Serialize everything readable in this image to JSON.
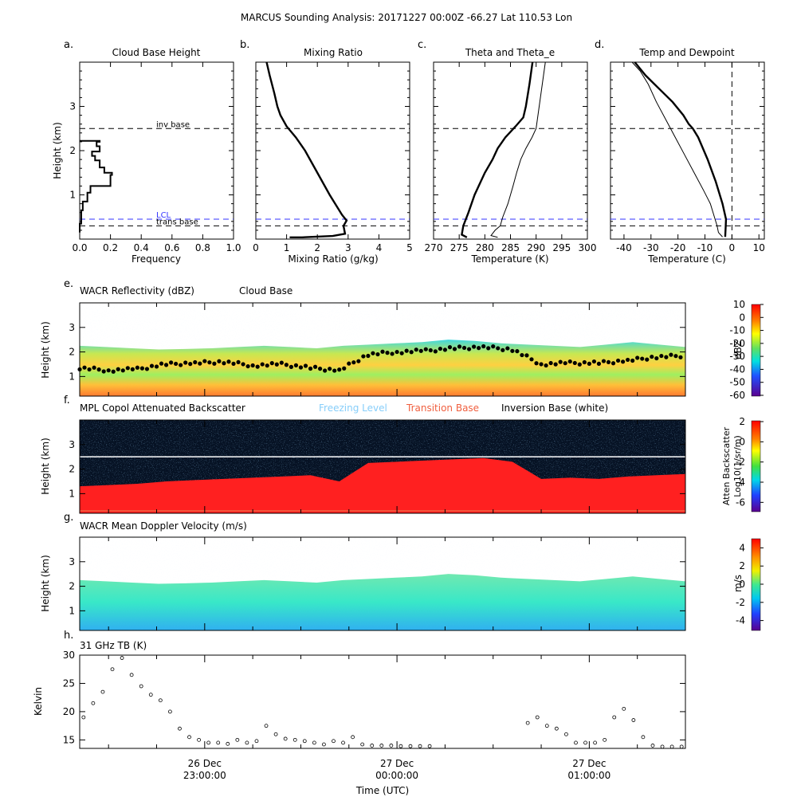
{
  "figure_title": "MARCUS Sounding Analysis: 20171227 00:00Z   -66.27 Lat  110.53 Lon",
  "colors": {
    "lcl_line": "#3333ff",
    "freezing_label": "#87cefa",
    "transition_label": "#f06040",
    "wacr_fill": "#ffb030",
    "mpl_fill": "#ff2020",
    "mpl_background": "#061224",
    "doppler_fill": "#40e8c0"
  },
  "chart_data": [
    {
      "id": "a",
      "panel_letter": "a.",
      "type": "line",
      "title": "Cloud Base Height",
      "xlabel": "Frequency",
      "ylabel": "Height (km)",
      "xlim": [
        0,
        1.0
      ],
      "ylim": [
        0,
        4
      ],
      "xticks": [
        "0.0",
        "0.2",
        "0.4",
        "0.6",
        "0.8",
        "1.0"
      ],
      "yticks": [
        "1",
        "2",
        "3"
      ],
      "series": [
        {
          "step_histogram": true,
          "x": [
            0,
            0.01,
            0.02,
            0.05,
            0.07,
            0.2,
            0.21,
            0.16,
            0.13,
            0.1,
            0.08,
            0.13,
            0.11,
            0.13,
            0.13,
            0.09,
            0.02,
            0.0
          ],
          "y": [
            0.15,
            0.35,
            0.65,
            0.85,
            1.05,
            1.2,
            1.45,
            1.5,
            1.62,
            1.78,
            1.88,
            1.98,
            2.1,
            2.2,
            2.22,
            2.22,
            2.22,
            2.22
          ]
        }
      ],
      "ref_lines": [
        {
          "y": 2.5,
          "label": "inv base",
          "color": "#000000"
        },
        {
          "y": 0.45,
          "label": "LCL",
          "color": "#3333ff"
        },
        {
          "y": 0.3,
          "label": "trans base",
          "color": "#000000"
        }
      ]
    },
    {
      "id": "b",
      "panel_letter": "b.",
      "type": "line",
      "title": "Mixing Ratio",
      "xlabel": "Mixing Ratio (g/kg)",
      "ylabel": "",
      "xlim": [
        0,
        5
      ],
      "ylim": [
        0,
        4
      ],
      "xticks": [
        "0",
        "1",
        "2",
        "3",
        "4",
        "5"
      ],
      "yticks": [],
      "series": [
        {
          "width": 2.4,
          "x": [
            0.35,
            0.45,
            0.6,
            0.7,
            0.8,
            1.0,
            1.3,
            1.6,
            2.0,
            2.4,
            2.8,
            2.95,
            2.85,
            2.9,
            2.5,
            1.5,
            1.1
          ],
          "y": [
            4.0,
            3.7,
            3.3,
            3.0,
            2.8,
            2.55,
            2.3,
            2.0,
            1.5,
            1.0,
            0.55,
            0.42,
            0.3,
            0.12,
            0.07,
            0.04,
            0.04
          ]
        }
      ],
      "ref_lines": [
        {
          "y": 2.5,
          "color": "#000000"
        },
        {
          "y": 0.45,
          "color": "#3333ff"
        },
        {
          "y": 0.3,
          "color": "#000000"
        }
      ]
    },
    {
      "id": "c",
      "panel_letter": "c.",
      "type": "line",
      "title": "Theta and Theta_e",
      "xlabel": "Temperature (K)",
      "ylabel": "",
      "xlim": [
        270,
        300
      ],
      "ylim": [
        0,
        4
      ],
      "xticks": [
        "270",
        "275",
        "280",
        "285",
        "290",
        "295",
        "300"
      ],
      "yticks": [],
      "series": [
        {
          "width": 2.4,
          "x": [
            289.3,
            288.7,
            288.0,
            287.5,
            286.0,
            284.0,
            282.5,
            281.5,
            280.0,
            278.0,
            276.8,
            275.8,
            275.5,
            276.5
          ],
          "y": [
            4.0,
            3.5,
            3.0,
            2.75,
            2.55,
            2.3,
            2.05,
            1.8,
            1.5,
            1.0,
            0.6,
            0.3,
            0.1,
            0.04
          ]
        },
        {
          "width": 1.0,
          "x": [
            291.8,
            291.2,
            290.6,
            290.0,
            289.2,
            288.0,
            287.0,
            286.2,
            285.5,
            284.5,
            283.5,
            283.0,
            282.0,
            281.2,
            282.5
          ],
          "y": [
            4.0,
            3.5,
            3.0,
            2.5,
            2.3,
            2.05,
            1.8,
            1.5,
            1.2,
            0.8,
            0.5,
            0.3,
            0.2,
            0.08,
            0.04
          ]
        }
      ],
      "ref_lines": [
        {
          "y": 2.5,
          "color": "#000000"
        },
        {
          "y": 0.45,
          "color": "#3333ff"
        },
        {
          "y": 0.3,
          "color": "#000000"
        }
      ]
    },
    {
      "id": "d",
      "panel_letter": "d.",
      "type": "line",
      "title": "Temp and Dewpoint",
      "xlabel": "Temperature (C)",
      "ylabel": "",
      "xlim": [
        -45,
        12
      ],
      "ylim": [
        0,
        4
      ],
      "xticks": [
        "-40",
        "-30",
        "-20",
        "-10",
        "0",
        "10"
      ],
      "yticks": [],
      "series": [
        {
          "width": 2.4,
          "x": [
            -36.0,
            -32.0,
            -27.0,
            -22.0,
            -18.0,
            -16.0,
            -14.5,
            -12.5,
            -9.0,
            -6.0,
            -3.5,
            -2.2,
            -2.3,
            -2.5
          ],
          "y": [
            4.0,
            3.7,
            3.4,
            3.1,
            2.8,
            2.6,
            2.5,
            2.3,
            1.8,
            1.3,
            0.8,
            0.45,
            0.3,
            0.05
          ]
        },
        {
          "width": 1.0,
          "x": [
            -37.0,
            -34.0,
            -31.0,
            -28.0,
            -24.5,
            -21.0,
            -17.5,
            -14.0,
            -10.5,
            -8.0,
            -6.5,
            -5.5,
            -5.0,
            -3.5
          ],
          "y": [
            4.0,
            3.8,
            3.5,
            3.1,
            2.7,
            2.3,
            1.9,
            1.5,
            1.1,
            0.8,
            0.5,
            0.3,
            0.15,
            0.05
          ]
        }
      ],
      "ref_lines": [
        {
          "y": 2.5,
          "color": "#000000"
        },
        {
          "y": 0.45,
          "color": "#3333ff"
        },
        {
          "y": 0.3,
          "color": "#000000"
        }
      ],
      "ref_vline": {
        "x": 0
      }
    },
    {
      "id": "e",
      "panel_letter": "e.",
      "type": "heatmap",
      "title": "WACR Reflectivity (dBZ)",
      "title2": "Cloud Base",
      "ylabel": "Height (km)",
      "ylim": [
        0.2,
        4.0
      ],
      "yticks": [
        "1",
        "2",
        "3"
      ],
      "colorbar": {
        "label": "dBZ",
        "range": [
          -60,
          10
        ],
        "ticks": [
          "10",
          "0",
          "-10",
          "-20",
          "-30",
          "-40",
          "-50",
          "-60"
        ]
      },
      "cloud_top_km": [
        2.25,
        2.2,
        2.15,
        2.1,
        2.12,
        2.15,
        2.2,
        2.25,
        2.2,
        2.15,
        2.25,
        2.3,
        2.35,
        2.4,
        2.5,
        2.45,
        2.35,
        2.3,
        2.25,
        2.2,
        2.3,
        2.4,
        2.3,
        2.2
      ],
      "cloud_base_series": {
        "name": "Cloud Base",
        "x_hours": [
          -1.65,
          -1.5,
          -1.35,
          -1.2,
          -1.05,
          -0.9,
          -0.75,
          -0.6,
          -0.45,
          -0.3,
          -0.15,
          0.0,
          0.15,
          0.3,
          0.45,
          0.6,
          0.75,
          0.9,
          1.05,
          1.2,
          1.35,
          1.5
        ],
        "y_km": [
          1.35,
          1.25,
          1.3,
          1.5,
          1.55,
          1.6,
          1.45,
          1.5,
          1.35,
          1.25,
          1.9,
          2.0,
          2.05,
          2.15,
          2.2,
          2.1,
          1.5,
          1.55,
          1.55,
          1.65,
          1.8,
          1.85
        ]
      }
    },
    {
      "id": "f",
      "panel_letter": "f.",
      "type": "heatmap",
      "title": "MPL Copol Attenuated Backscatter",
      "legend_items": [
        {
          "label": "Freezing Level",
          "color": "#87cefa"
        },
        {
          "label": "Transition Base",
          "color": "#f06040"
        },
        {
          "label": "Inversion Base (white)",
          "color": "#000000"
        }
      ],
      "ylabel": "Height (km)",
      "ylim": [
        0.2,
        4.0
      ],
      "yticks": [
        "1",
        "2",
        "3"
      ],
      "colorbar": {
        "label": "Atten Backscatter",
        "label2": "Log10(1/sr/m)",
        "range": [
          -7,
          2
        ],
        "ticks": [
          "2",
          "0",
          "-2",
          "-4",
          "-6"
        ]
      },
      "cloud_top_km": [
        1.3,
        1.35,
        1.4,
        1.5,
        1.55,
        1.6,
        1.65,
        1.7,
        1.75,
        1.5,
        2.25,
        2.3,
        2.35,
        2.4,
        2.45,
        2.3,
        1.6,
        1.65,
        1.6,
        1.7,
        1.75,
        1.8
      ],
      "inversion_base_km": 2.5,
      "transition_base_km": 0.3
    },
    {
      "id": "g",
      "panel_letter": "g.",
      "type": "heatmap",
      "title": "WACR Mean Doppler Velocity (m/s)",
      "ylabel": "Height (km)",
      "ylim": [
        0.2,
        4.0
      ],
      "yticks": [
        "1",
        "2",
        "3"
      ],
      "colorbar": {
        "label": "m/s",
        "range": [
          -5,
          5
        ],
        "ticks": [
          "4",
          "2",
          "0",
          "-2",
          "-4"
        ]
      },
      "cloud_top_km": [
        2.25,
        2.2,
        2.15,
        2.1,
        2.12,
        2.15,
        2.2,
        2.25,
        2.2,
        2.15,
        2.25,
        2.3,
        2.35,
        2.4,
        2.5,
        2.45,
        2.35,
        2.3,
        2.25,
        2.2,
        2.3,
        2.4,
        2.3,
        2.2
      ]
    },
    {
      "id": "h",
      "panel_letter": "h.",
      "type": "scatter",
      "title": "31 GHz TB (K)",
      "ylabel": "Kelvin",
      "xlabel": "Time (UTC)",
      "ylim": [
        13.5,
        30
      ],
      "yticks": [
        "15",
        "20",
        "25",
        "30"
      ],
      "x_range_hours": [
        -1.65,
        1.5
      ],
      "xticks": [
        {
          "hour": -1.0,
          "line1": "26 Dec",
          "line2": "23:00:00"
        },
        {
          "hour": 0.0,
          "line1": "27 Dec",
          "line2": "00:00:00"
        },
        {
          "hour": 1.0,
          "line1": "27 Dec",
          "line2": "01:00:00"
        }
      ],
      "series": [
        {
          "x_hours": [
            -1.63,
            -1.58,
            -1.53,
            -1.48,
            -1.43,
            -1.38,
            -1.33,
            -1.28,
            -1.23,
            -1.18,
            -1.13,
            -1.08,
            -1.03,
            -0.98,
            -0.93,
            -0.88,
            -0.83,
            -0.78,
            -0.73,
            -0.68,
            -0.63,
            -0.58,
            -0.53,
            -0.48,
            -0.43,
            -0.38,
            -0.33,
            -0.28,
            -0.23,
            -0.18,
            -0.13,
            -0.08,
            -0.03,
            0.02,
            0.07,
            0.12,
            0.17,
            0.68,
            0.73,
            0.78,
            0.83,
            0.88,
            0.93,
            0.98,
            1.03,
            1.08,
            1.13,
            1.18,
            1.23,
            1.28,
            1.33,
            1.38,
            1.43,
            1.48
          ],
          "y": [
            19.0,
            21.5,
            23.5,
            27.5,
            29.5,
            26.5,
            24.5,
            23.0,
            22.0,
            20.0,
            17.0,
            15.5,
            15.0,
            14.5,
            14.5,
            14.3,
            15.0,
            14.5,
            14.8,
            17.5,
            16.0,
            15.2,
            15.0,
            14.8,
            14.5,
            14.2,
            14.8,
            14.5,
            15.5,
            14.2,
            14.0,
            14.0,
            14.0,
            13.9,
            13.9,
            13.9,
            13.9,
            18.0,
            19.0,
            17.5,
            17.0,
            16.0,
            14.5,
            14.5,
            14.5,
            15.0,
            19.0,
            20.5,
            18.5,
            15.5,
            14.0,
            13.8,
            13.8,
            13.8
          ]
        }
      ]
    }
  ]
}
